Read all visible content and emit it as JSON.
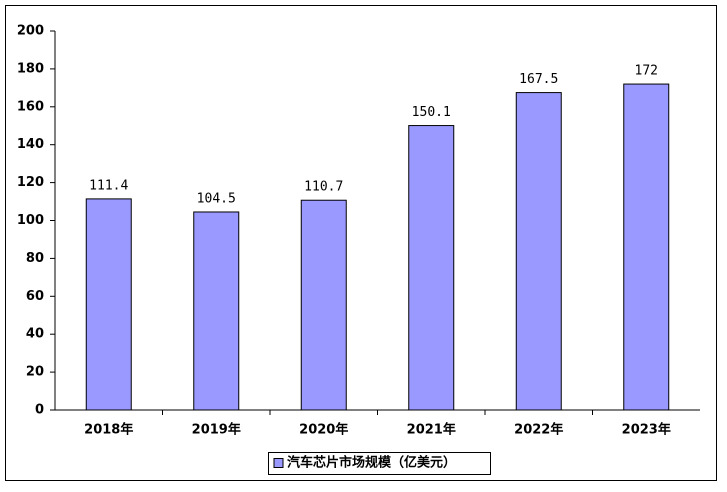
{
  "chart_data": {
    "type": "bar",
    "categories": [
      "2018年",
      "2019年",
      "2020年",
      "2021年",
      "2022年",
      "2023年"
    ],
    "series": [
      {
        "name": "汽车芯片市场规模（亿美元）",
        "color": "#9999ff",
        "values": [
          111.4,
          104.5,
          110.7,
          150.1,
          167.5,
          172
        ]
      }
    ],
    "ylim": [
      0,
      200
    ],
    "yticks": [
      0,
      20,
      40,
      60,
      80,
      100,
      120,
      140,
      160,
      180,
      200
    ],
    "grid": false,
    "legend": "bottom"
  }
}
